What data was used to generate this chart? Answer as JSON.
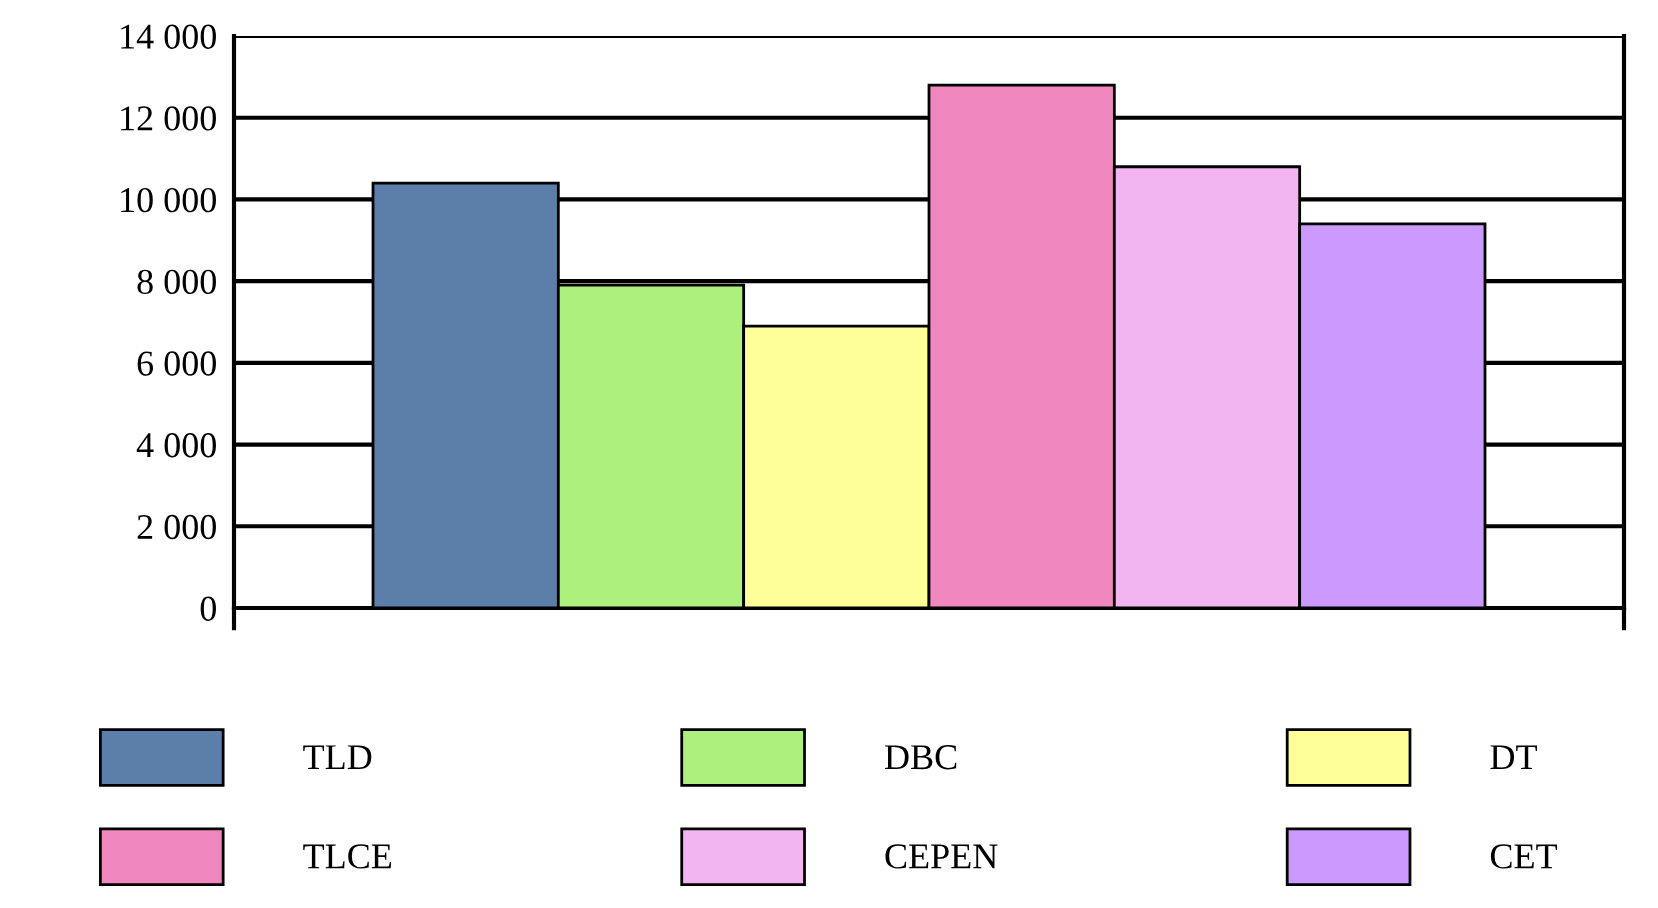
{
  "chart_data": {
    "type": "bar",
    "categories": [
      null
    ],
    "series": [
      {
        "name": "TLD",
        "color": "#5b7fa8",
        "values": [
          10400
        ]
      },
      {
        "name": "DBC",
        "color": "#adf07e",
        "values": [
          7900
        ]
      },
      {
        "name": "DT",
        "color": "#ffff99",
        "values": [
          6900
        ]
      },
      {
        "name": "TLCE",
        "color": "#f088bf",
        "values": [
          12800
        ]
      },
      {
        "name": "CEPEN",
        "color": "#f3b4f2",
        "values": [
          10800
        ]
      },
      {
        "name": "CET",
        "color": "#cc99ff",
        "values": [
          9400
        ]
      }
    ],
    "ylim": [
      0,
      14000
    ],
    "yticks": [
      0,
      {
        "value": 2000,
        "label": "2 000"
      },
      {
        "value": 4000,
        "label": "4 000"
      },
      {
        "value": 6000,
        "label": "6 000"
      },
      {
        "value": 8000,
        "label": "8 000"
      },
      {
        "value": 10000,
        "label": "10 000"
      },
      {
        "value": 12000,
        "label": "12 000"
      },
      {
        "value": 14000,
        "label": "14 000"
      }
    ],
    "grid": "y",
    "legend": "bottom"
  }
}
